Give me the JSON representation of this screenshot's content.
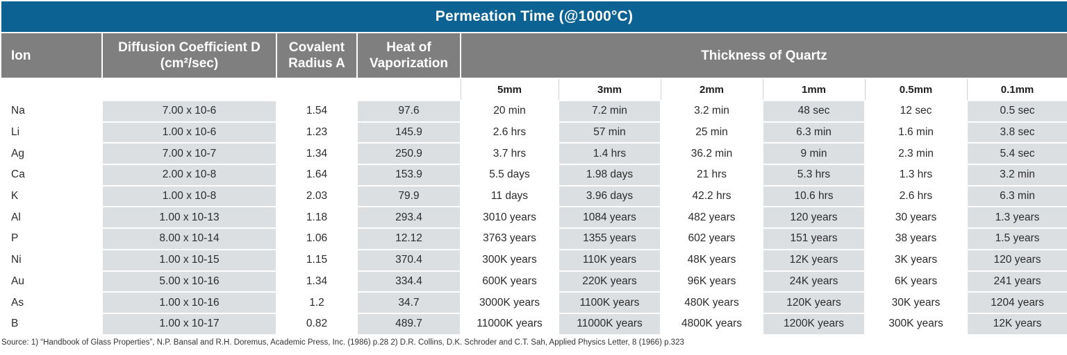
{
  "title": "Permeation Time (@1000°C)",
  "headers": {
    "ion": "Ion",
    "diffusion": "Diffusion Coefficient D (cm²/sec)",
    "radius": "Covalent Radius A",
    "heat": "Heat of Vaporization",
    "thickness": "Thickness of Quartz"
  },
  "thickness_columns": [
    "5mm",
    "3mm",
    "2mm",
    "1mm",
    "0.5mm",
    "0.1mm"
  ],
  "rows": [
    {
      "ion": "Na",
      "d": "7.00 x 10-6",
      "r": "1.54",
      "h": "97.6",
      "t": [
        "20 min",
        "7.2 min",
        "3.2 min",
        "48 sec",
        "12 sec",
        "0.5 sec"
      ]
    },
    {
      "ion": "Li",
      "d": "1.00 x 10-6",
      "r": "1.23",
      "h": "145.9",
      "t": [
        "2.6 hrs",
        "57 min",
        "25 min",
        "6.3 min",
        "1.6 min",
        "3.8 sec"
      ]
    },
    {
      "ion": "Ag",
      "d": "7.00 x 10-7",
      "r": "1.34",
      "h": "250.9",
      "t": [
        "3.7 hrs",
        "1.4 hrs",
        "36.2 min",
        "9 min",
        "2.3 min",
        "5.4 sec"
      ]
    },
    {
      "ion": "Ca",
      "d": "2.00 x 10-8",
      "r": "1.64",
      "h": "153.9",
      "t": [
        "5.5 days",
        "1.98 days",
        "21 hrs",
        "5.3 hrs",
        "1.3 hrs",
        "3.2 min"
      ]
    },
    {
      "ion": "K",
      "d": "1.00 x 10-8",
      "r": "2.03",
      "h": "79.9",
      "t": [
        "11 days",
        "3.96 days",
        "42.2 hrs",
        "10.6 hrs",
        "2.6 hrs",
        "6.3 min"
      ]
    },
    {
      "ion": "Al",
      "d": "1.00 x 10-13",
      "r": "1.18",
      "h": "293.4",
      "t": [
        "3010 years",
        "1084 years",
        "482 years",
        "120 years",
        "30 years",
        "1.3 years"
      ]
    },
    {
      "ion": "P",
      "d": "8.00 x 10-14",
      "r": "1.06",
      "h": "12.12",
      "t": [
        "3763 years",
        "1355 years",
        "602 years",
        "151 years",
        "38 years",
        "1.5 years"
      ]
    },
    {
      "ion": "Ni",
      "d": "1.00 x 10-15",
      "r": "1.15",
      "h": "370.4",
      "t": [
        "300K years",
        "110K years",
        "48K years",
        "12K years",
        "3K years",
        "120 years"
      ]
    },
    {
      "ion": "Au",
      "d": "5.00 x 10-16",
      "r": "1.34",
      "h": "334.4",
      "t": [
        "600K years",
        "220K years",
        "96K years",
        "24K years",
        "6K years",
        "241 years"
      ]
    },
    {
      "ion": "As",
      "d": "1.00 x 10-16",
      "r": "1.2",
      "h": "34.7",
      "t": [
        "3000K years",
        "1100K years",
        "480K years",
        "120K years",
        "30K years",
        "1204 years"
      ]
    },
    {
      "ion": "B",
      "d": "1.00 x 10-17",
      "r": "0.82",
      "h": "489.7",
      "t": [
        "11000K years",
        "11000K years",
        "4800K years",
        "1200K years",
        "300K years",
        "12K years"
      ]
    }
  ],
  "source": "Source: 1) “Handbook of Glass Properties”, N.P. Bansal and R.H. Doremus, Academic Press, Inc. (1986) p.28 2) D.R. Collins, D.K. Schroder and C.T. Sah, Applied Physics Letter, 8 (1966) p.323",
  "colors": {
    "title_bg": "#0b6293",
    "header_bg": "#7f7f7f",
    "cell_gray": "#dcdfe2"
  }
}
